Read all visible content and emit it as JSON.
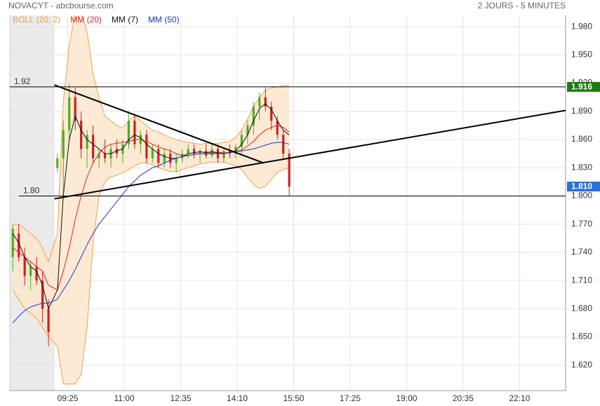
{
  "chart_data": {
    "type": "candlestick",
    "title": "NOVACYT - abcbourse.com",
    "subtitle": "2 JOURS - 5 MINUTES",
    "xlim": [
      0,
      187
    ],
    "xticks": [
      {
        "value": 19.5,
        "label": "09:25"
      },
      {
        "value": 38.5,
        "label": "11:00"
      },
      {
        "value": 57.5,
        "label": "12:35"
      },
      {
        "value": 76.5,
        "label": "14:10"
      },
      {
        "value": 95.5,
        "label": "15:50"
      },
      {
        "value": 114.5,
        "label": "17:25"
      },
      {
        "value": 133.5,
        "label": "19:00"
      },
      {
        "value": 152.5,
        "label": "20:35"
      },
      {
        "value": 171.5,
        "label": "22:10"
      }
    ],
    "ylim": [
      1.593,
      1.992
    ],
    "yticks": [
      {
        "value": 1.62,
        "label": "1.620"
      },
      {
        "value": 1.65,
        "label": "1.650"
      },
      {
        "value": 1.68,
        "label": "1.680"
      },
      {
        "value": 1.71,
        "label": "1.710"
      },
      {
        "value": 1.74,
        "label": "1.740"
      },
      {
        "value": 1.77,
        "label": "1.770"
      },
      {
        "value": 1.8,
        "label": "1.800"
      },
      {
        "value": 1.83,
        "label": "1.830"
      },
      {
        "value": 1.86,
        "label": "1.860"
      },
      {
        "value": 1.89,
        "label": "1.890"
      },
      {
        "value": 1.92,
        "label": "1.920"
      },
      {
        "value": 1.95,
        "label": "1.950"
      },
      {
        "value": 1.98,
        "label": "1.980"
      }
    ],
    "grid": true,
    "up_color": "#4caf22",
    "down_color": "#cc2020",
    "x": [
      1,
      3,
      5,
      7,
      9,
      11,
      13,
      16,
      18,
      20,
      22,
      24,
      26,
      28,
      30,
      32,
      34,
      36,
      38,
      40,
      42,
      44,
      46,
      48,
      50,
      52,
      54,
      56,
      58,
      60,
      62,
      64,
      66,
      68,
      70,
      72,
      74,
      76,
      78,
      80,
      82,
      84,
      86,
      88,
      90,
      92,
      94
    ],
    "open": [
      1.735,
      1.76,
      1.735,
      1.715,
      1.725,
      1.71,
      1.68,
      1.83,
      1.84,
      1.87,
      1.905,
      1.88,
      1.85,
      1.865,
      1.84,
      1.845,
      1.84,
      1.85,
      1.845,
      1.855,
      1.88,
      1.855,
      1.865,
      1.84,
      1.85,
      1.835,
      1.845,
      1.835,
      1.84,
      1.845,
      1.85,
      1.845,
      1.848,
      1.843,
      1.85,
      1.84,
      1.848,
      1.845,
      1.852,
      1.865,
      1.875,
      1.895,
      1.905,
      1.895,
      1.88,
      1.865,
      1.845
    ],
    "high": [
      1.77,
      1.77,
      1.745,
      1.73,
      1.735,
      1.72,
      1.69,
      1.845,
      1.88,
      1.92,
      1.915,
      1.89,
      1.87,
      1.875,
      1.85,
      1.86,
      1.855,
      1.86,
      1.86,
      1.89,
      1.885,
      1.87,
      1.87,
      1.855,
      1.855,
      1.85,
      1.85,
      1.845,
      1.85,
      1.855,
      1.855,
      1.85,
      1.855,
      1.855,
      1.855,
      1.85,
      1.855,
      1.855,
      1.87,
      1.88,
      1.9,
      1.91,
      1.915,
      1.9,
      1.885,
      1.87,
      1.85
    ],
    "low": [
      1.72,
      1.73,
      1.705,
      1.7,
      1.705,
      1.665,
      1.64,
      1.825,
      1.8,
      1.86,
      1.87,
      1.84,
      1.83,
      1.835,
      1.83,
      1.835,
      1.83,
      1.84,
      1.835,
      1.85,
      1.85,
      1.845,
      1.835,
      1.835,
      1.83,
      1.83,
      1.83,
      1.825,
      1.835,
      1.84,
      1.84,
      1.835,
      1.84,
      1.84,
      1.835,
      1.835,
      1.84,
      1.84,
      1.845,
      1.855,
      1.865,
      1.88,
      1.89,
      1.87,
      1.86,
      1.84,
      1.8
    ],
    "close": [
      1.765,
      1.735,
      1.715,
      1.725,
      1.71,
      1.68,
      1.655,
      1.84,
      1.87,
      1.905,
      1.88,
      1.85,
      1.865,
      1.84,
      1.845,
      1.84,
      1.85,
      1.845,
      1.855,
      1.88,
      1.855,
      1.865,
      1.84,
      1.85,
      1.835,
      1.845,
      1.835,
      1.84,
      1.845,
      1.85,
      1.845,
      1.848,
      1.843,
      1.85,
      1.84,
      1.848,
      1.845,
      1.852,
      1.865,
      1.875,
      1.895,
      1.905,
      1.895,
      1.88,
      1.865,
      1.845,
      1.81
    ],
    "series": [
      {
        "name": "BOLL (20, 2)",
        "color": "#f0a050",
        "fill": "#fde6cc",
        "upper": [
          1.77,
          1.77,
          1.765,
          1.76,
          1.755,
          1.745,
          1.73,
          1.76,
          1.9,
          1.96,
          1.995,
          1.995,
          1.975,
          1.93,
          1.905,
          1.885,
          1.88,
          1.875,
          1.872,
          1.88,
          1.885,
          1.88,
          1.875,
          1.87,
          1.868,
          1.865,
          1.862,
          1.86,
          1.858,
          1.857,
          1.856,
          1.855,
          1.856,
          1.856,
          1.856,
          1.857,
          1.858,
          1.862,
          1.87,
          1.882,
          1.895,
          1.905,
          1.912,
          1.915,
          1.916,
          1.917,
          1.918
        ],
        "lower": [
          1.7,
          1.69,
          1.68,
          1.675,
          1.67,
          1.66,
          1.65,
          1.64,
          1.6,
          1.6,
          1.6,
          1.61,
          1.66,
          1.75,
          1.8,
          1.815,
          1.82,
          1.822,
          1.825,
          1.828,
          1.832,
          1.835,
          1.835,
          1.833,
          1.83,
          1.828,
          1.826,
          1.826,
          1.828,
          1.83,
          1.832,
          1.834,
          1.835,
          1.836,
          1.836,
          1.836,
          1.834,
          1.832,
          1.828,
          1.82,
          1.812,
          1.808,
          1.81,
          1.818,
          1.825,
          1.828,
          1.83
        ]
      },
      {
        "name": "MM (20)",
        "color": "#dd2222",
        "values": [
          1.745,
          1.74,
          1.735,
          1.73,
          1.725,
          1.72,
          1.705,
          1.7,
          1.72,
          1.745,
          1.775,
          1.8,
          1.82,
          1.835,
          1.845,
          1.852,
          1.855,
          1.856,
          1.857,
          1.858,
          1.86,
          1.86,
          1.858,
          1.855,
          1.852,
          1.85,
          1.848,
          1.845,
          1.843,
          1.843,
          1.844,
          1.845,
          1.845,
          1.846,
          1.846,
          1.846,
          1.846,
          1.847,
          1.849,
          1.853,
          1.858,
          1.865,
          1.87,
          1.873,
          1.875,
          1.873,
          1.868
        ]
      },
      {
        "name": "MM (7)",
        "color": "#111111",
        "values": [
          1.76,
          1.75,
          1.735,
          1.725,
          1.72,
          1.705,
          1.68,
          1.7,
          1.8,
          1.86,
          1.885,
          1.87,
          1.86,
          1.855,
          1.85,
          1.845,
          1.845,
          1.848,
          1.85,
          1.86,
          1.865,
          1.862,
          1.855,
          1.85,
          1.845,
          1.842,
          1.84,
          1.84,
          1.842,
          1.845,
          1.846,
          1.847,
          1.846,
          1.847,
          1.846,
          1.845,
          1.846,
          1.848,
          1.855,
          1.865,
          1.88,
          1.893,
          1.898,
          1.892,
          1.88,
          1.87,
          1.865
        ]
      },
      {
        "name": "MM (50)",
        "color": "#2233cc",
        "values": [
          1.665,
          1.672,
          1.678,
          1.682,
          1.684,
          1.686,
          1.686,
          1.69,
          1.7,
          1.71,
          1.722,
          1.735,
          1.748,
          1.76,
          1.77,
          1.778,
          1.786,
          1.794,
          1.802,
          1.81,
          1.816,
          1.822,
          1.826,
          1.83,
          1.832,
          1.835,
          1.838,
          1.84,
          1.842,
          1.843,
          1.844,
          1.845,
          1.845,
          1.845,
          1.845,
          1.845,
          1.846,
          1.847,
          1.848,
          1.849,
          1.85,
          1.852,
          1.854,
          1.856,
          1.857,
          1.857,
          1.855
        ]
      }
    ],
    "hlines": [
      {
        "value": 1.916,
        "label": "1.92"
      },
      {
        "value": 1.8,
        "label": "1.80"
      }
    ],
    "trendlines": [
      {
        "x": [
          15,
          85.5
        ],
        "y": [
          1.918,
          1.835
        ]
      },
      {
        "x": [
          15,
          187
        ],
        "y": [
          1.797,
          1.891
        ]
      }
    ],
    "price_tags": [
      {
        "value": 1.916,
        "color": "#1e7a12"
      },
      {
        "value": 1.81,
        "label": "1.810",
        "color": "#2a6fdb"
      }
    ]
  }
}
